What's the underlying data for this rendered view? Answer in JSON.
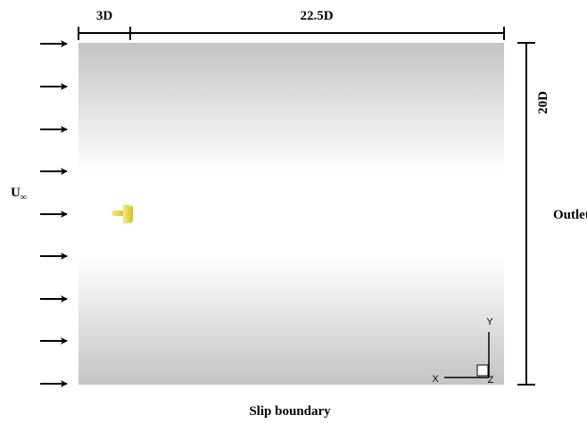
{
  "dimensions": {
    "upstream": "3D",
    "downstream": "22.5D",
    "height": "20D"
  },
  "inlet_label": {
    "main": "U",
    "subscript": "∞"
  },
  "outlet_label": "Outlet",
  "bottom_label": "Slip boundary",
  "axes": {
    "x": "X",
    "y": "Y",
    "z": "Z"
  }
}
